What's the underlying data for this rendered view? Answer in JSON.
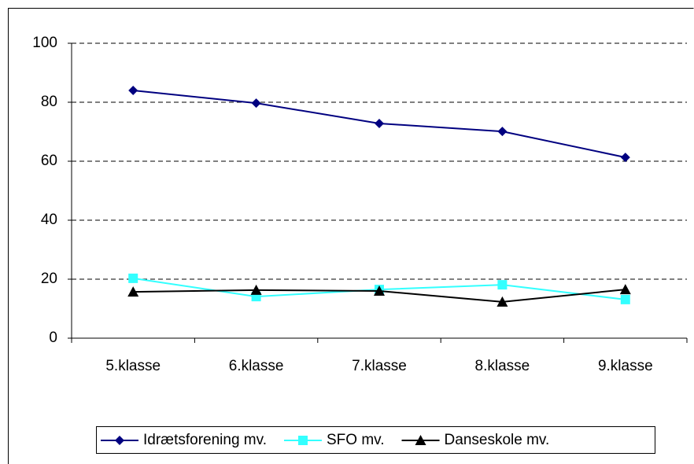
{
  "chart_data": {
    "type": "line",
    "categories": [
      "5.klasse",
      "6.klasse",
      "7.klasse",
      "8.klasse",
      "9.klasse"
    ],
    "series": [
      {
        "name": "Idrætsforening mv.",
        "color": "#000080",
        "marker": "diamond",
        "values": [
          84,
          79.7,
          72.8,
          70.1,
          61.3
        ]
      },
      {
        "name": "SFO mv.",
        "color": "#33ffff",
        "marker": "square",
        "values": [
          20.3,
          14.1,
          16.5,
          18.1,
          13.1
        ]
      },
      {
        "name": "Danseskole mv.",
        "color": "#000000",
        "marker": "triangle",
        "values": [
          15.7,
          16.3,
          16,
          12.3,
          16.5
        ]
      }
    ],
    "ylim": [
      0,
      100
    ],
    "yticks": [
      0,
      20,
      40,
      60,
      80,
      100
    ],
    "grid": true,
    "legend": "bottom"
  }
}
